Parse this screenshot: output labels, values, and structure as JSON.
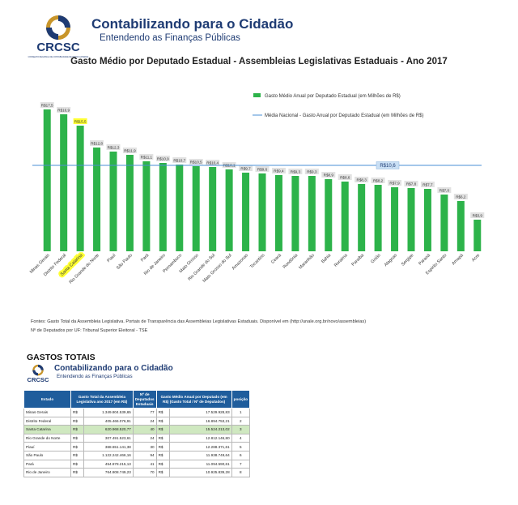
{
  "header": {
    "org": "CRCSC",
    "org_caption": "CONSELHO REGIONAL DE CONTABILIDADE DE SANTA CATARINA",
    "title": "Contabilizando para o Cidadão",
    "subtitle": "Entendendo as Finanças Públicas"
  },
  "colors": {
    "bar": "#2db34a",
    "line": "#4a8fd4",
    "brand": "#1e3b73",
    "highlight": "#ffff33",
    "table_header": "#1f5d9c"
  },
  "chart_data": {
    "type": "bar",
    "title": "Gasto Médio por Deputado Estadual - Assembleias Legislativas Estaduais - Ano 2017",
    "categories": [
      "Minas Gerais",
      "Distrito Federal",
      "Santa Catarina",
      "Rio Grande do Norte",
      "Piauí",
      "São Paulo",
      "Pará",
      "Rio de Janeiro",
      "Pernambuco",
      "Mato Grosso",
      "Rio Grande do Sul",
      "Mato Grosso do Sul",
      "Amazonas",
      "Tocantins",
      "Ceará",
      "Rondônia",
      "Maranhão",
      "Bahia",
      "Roraima",
      "Paraíba",
      "Goiás",
      "Alagoas",
      "Sergipe",
      "Paraná",
      "Espírito Santo",
      "Amapá",
      "Acre"
    ],
    "series": [
      {
        "name": "Gasto Médio Anual por Deputado Estadual (em Milhões de R$)",
        "values": [
          17.5,
          16.9,
          15.5,
          12.8,
          12.3,
          11.9,
          11.1,
          10.9,
          10.7,
          10.5,
          10.4,
          10.1,
          9.7,
          9.6,
          9.4,
          9.3,
          9.3,
          8.9,
          8.6,
          8.3,
          8.2,
          7.9,
          7.8,
          7.7,
          7.0,
          6.2,
          3.9
        ]
      },
      {
        "name": "Média Nacional - Gasto Anual por Deputado Estadual (em Milhões de R$)",
        "value": 10.6
      }
    ],
    "data_labels": [
      "R$17,5",
      "R$16,9",
      "R$15,5",
      "R$12,8",
      "R$12,3",
      "R$11,9",
      "R$11,1",
      "R$10,9",
      "R$10,7",
      "R$10,5",
      "R$10,4",
      "R$10,1",
      "R$9,7",
      "R$9,6",
      "R$9,4",
      "R$9,3",
      "R$9,3",
      "R$8,9",
      "R$8,6",
      "R$8,3",
      "R$8,2",
      "R$7,9",
      "R$7,8",
      "R$7,7",
      "R$7,0",
      "R$6,2",
      "R$3,9"
    ],
    "average_label": "R$10,6",
    "highlight_category": "Santa Catarina",
    "ylim": [
      0,
      19
    ],
    "grid": false,
    "legend_position": "top-right"
  },
  "sources": {
    "line1": "Fontes: Gasto Total da Assembleia Legislativa. Portais de Transparência das Assembleias Legislativas Estaduais. Disponível em (http://unale.org.br/novo/assembleias)",
    "line2": "Nº de Deputados por UF: Tribunal Superior Eleitoral - TSE"
  },
  "gastos": {
    "title": "GASTOS TOTAIS",
    "headers": {
      "estado": "Estado",
      "gasto_total": "Gasto Total da Assembleia Legislativa ano 2017 (em R$)",
      "deputados": "Nº de Deputados Estaduais",
      "gasto_medio": "Gasto Médio Anual por Deputado (em R$) (Gasto Total / Nº de Deputados)",
      "posicao": "posição"
    },
    "rows": [
      {
        "estado": "Minas Gerais",
        "rs1": "R$",
        "total": "1.349.804.539,65",
        "dep": "77",
        "rs2": "R$",
        "medio": "17.529.928,83",
        "pos": "1"
      },
      {
        "estado": "Distrito Federal",
        "rs1": "R$",
        "total": "405.466.076,91",
        "dep": "24",
        "rs2": "R$",
        "medio": "16.894.753,21",
        "pos": "2"
      },
      {
        "estado": "Santa Catarina",
        "rs1": "R$",
        "total": "620.968.520,77",
        "dep": "40",
        "rs2": "R$",
        "medio": "15.524.213,02",
        "pos": "3"
      },
      {
        "estado": "Rio Grande do Norte",
        "rs1": "R$",
        "total": "307.491.523,61",
        "dep": "24",
        "rs2": "R$",
        "medio": "12.812.146,80",
        "pos": "4"
      },
      {
        "estado": "Piauí",
        "rs1": "R$",
        "total": "368.651.141,38",
        "dep": "30",
        "rs2": "R$",
        "medio": "12.288.371,61",
        "pos": "5"
      },
      {
        "estado": "São Paulo",
        "rs1": "R$",
        "total": "1.122.242.466,16",
        "dep": "94",
        "rs2": "R$",
        "medio": "11.938.749,64",
        "pos": "6"
      },
      {
        "estado": "Pará",
        "rs1": "R$",
        "total": "454.878.215,13",
        "dep": "41",
        "rs2": "R$",
        "medio": "11.094.590,61",
        "pos": "7"
      },
      {
        "estado": "Rio de Janeiro",
        "rs1": "R$",
        "total": "764.808.749,23",
        "dep": "70",
        "rs2": "R$",
        "medio": "10.925.839,28",
        "pos": "8"
      }
    ]
  }
}
